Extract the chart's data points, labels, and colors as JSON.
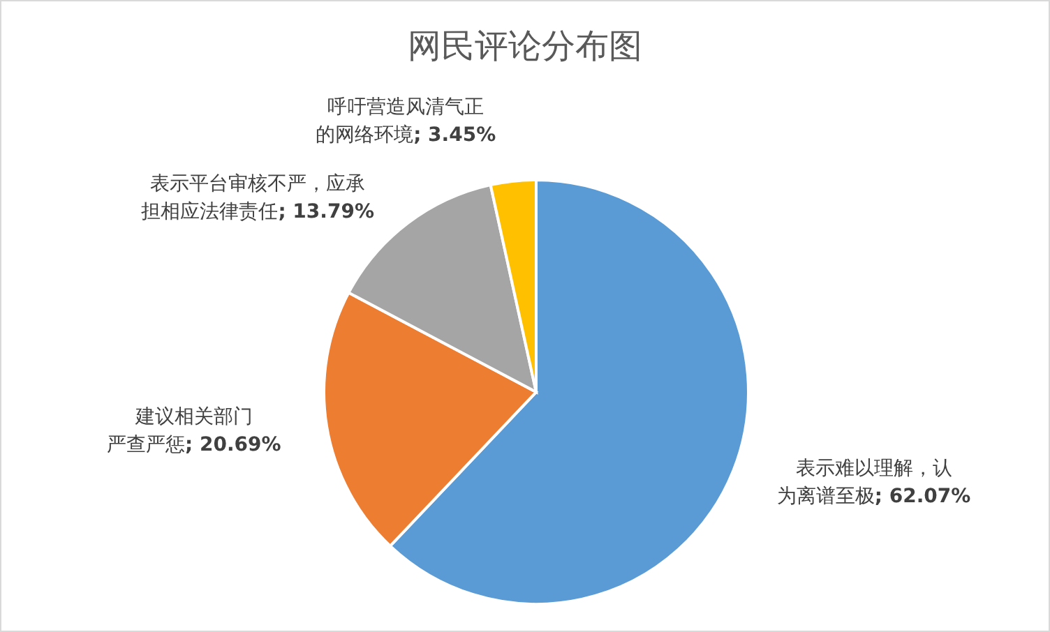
{
  "chart_data": {
    "type": "pie",
    "title": "网民评论分布图",
    "categories": [
      "表示难以理解，认为离谱至极",
      "建议相关部门严查严惩",
      "表示平台审核不严，应承担相应法律责任",
      "呼吁营造风清气正的网络环境"
    ],
    "values": [
      62.07,
      20.69,
      13.79,
      3.45
    ],
    "value_labels": [
      "; 62.07%",
      "; 20.69%",
      "; 13.79%",
      "; 3.45%"
    ],
    "colors": [
      "#5b9bd5",
      "#ed7d31",
      "#a5a5a5",
      "#ffc000"
    ]
  }
}
